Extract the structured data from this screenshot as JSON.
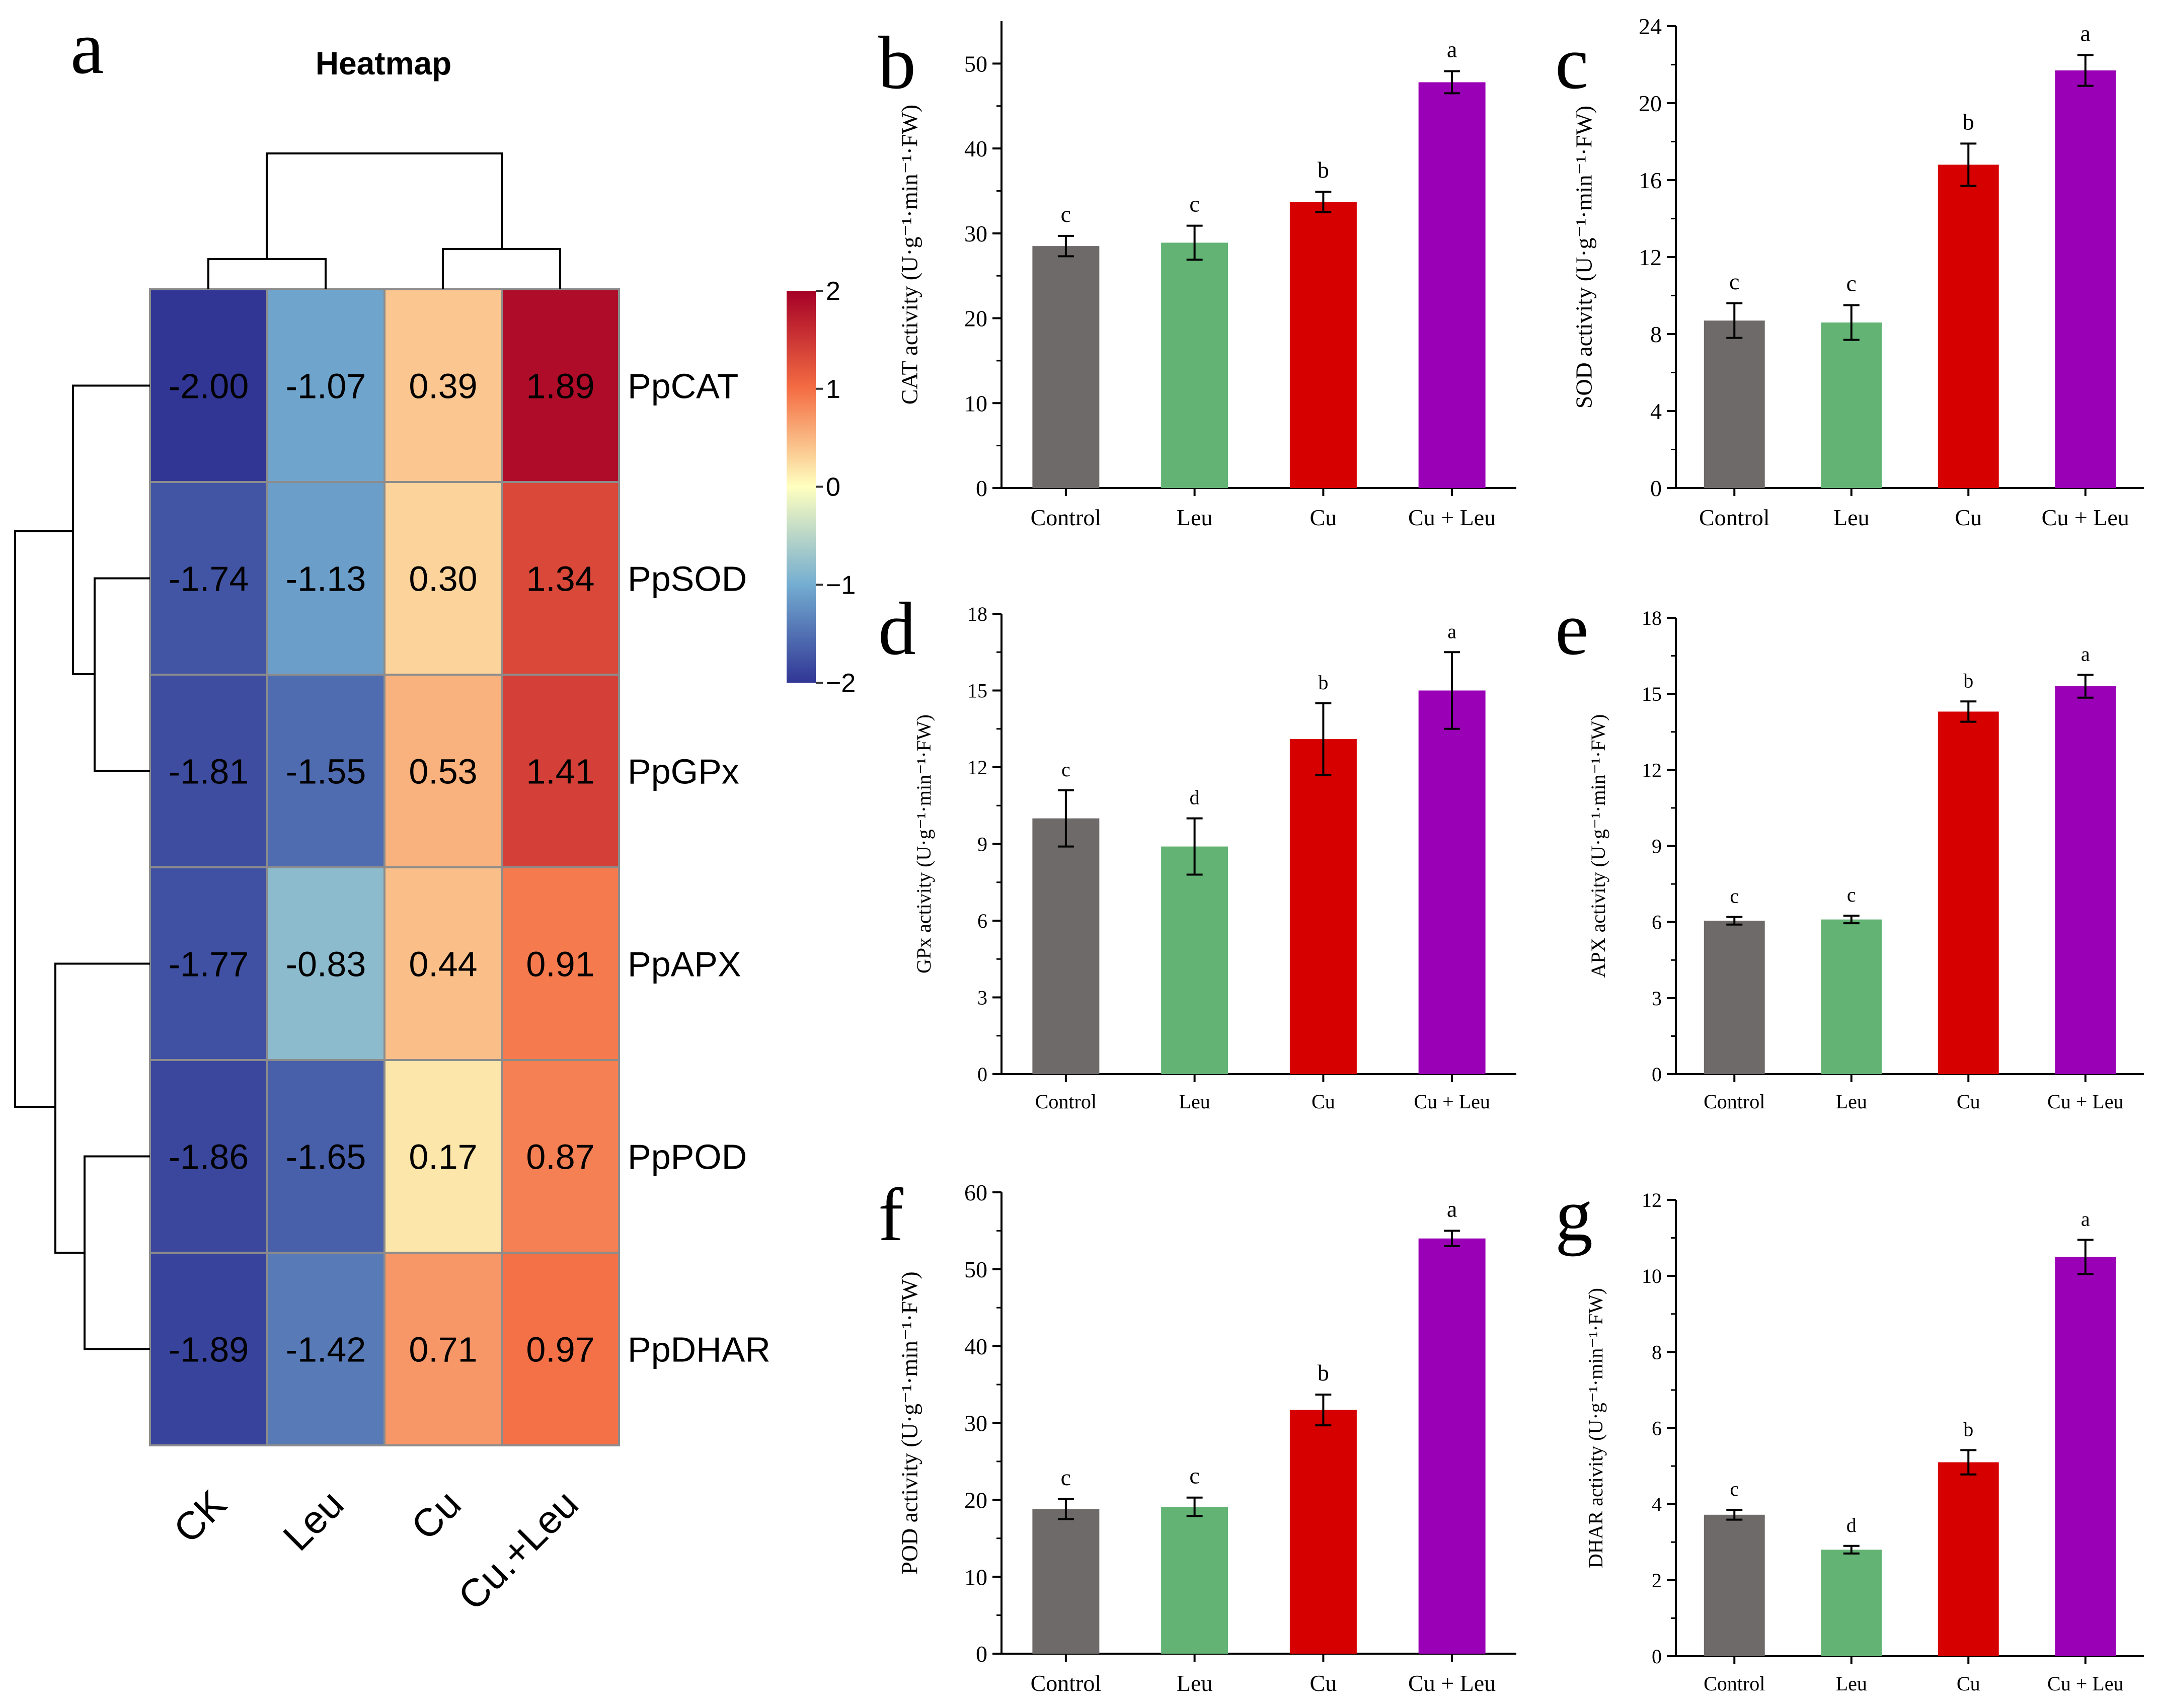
{
  "colors": {
    "Control": "#6e6a6a",
    "Leu": "#63b474",
    "Cu": "#d60000",
    "Cu + Leu": "#9a00b5",
    "grid_line": "#a8a8a8"
  },
  "chart_data": [
    {
      "panel": "a",
      "type": "heatmap",
      "title": "Heatmap",
      "columns": [
        "CK",
        "Leu",
        "Cu",
        "Cu.+Leu"
      ],
      "rows": [
        "PpCAT",
        "PpSOD",
        "PpGPx",
        "PpAPX",
        "PpPOD",
        "PpDHAR"
      ],
      "values": [
        [
          -2.0,
          -1.07,
          0.39,
          1.89
        ],
        [
          -1.74,
          -1.13,
          0.3,
          1.34
        ],
        [
          -1.81,
          -1.55,
          0.53,
          1.41
        ],
        [
          -1.77,
          -0.83,
          0.44,
          0.91
        ],
        [
          -1.86,
          -1.65,
          0.17,
          0.87
        ],
        [
          -1.89,
          -1.42,
          0.71,
          0.97
        ]
      ],
      "labels": [
        [
          "-2.00",
          "-1.07",
          "0.39",
          "1.89"
        ],
        [
          "-1.74",
          "-1.13",
          "0.30",
          "1.34"
        ],
        [
          "-1.81",
          "-1.55",
          "0.53",
          "1.41"
        ],
        [
          "-1.77",
          "-0.83",
          "0.44",
          "0.91"
        ],
        [
          "-1.86",
          "-1.65",
          "0.17",
          "0.87"
        ],
        [
          "-1.89",
          "-1.42",
          "0.71",
          "0.97"
        ]
      ],
      "colorbar": {
        "ticks": [
          "2",
          "1",
          "0",
          "−1",
          "−2"
        ],
        "vmin": -2,
        "vmax": 2
      },
      "dendrogram": {
        "columns": "((CK,Leu),(Cu,Cu.+Leu))",
        "rows": "(PpCAT,(PpSOD,PpGPx)),(PpAPX,(PpPOD,PpDHAR))"
      }
    },
    {
      "panel": "b",
      "type": "bar",
      "categories": [
        "Control",
        "Leu",
        "Cu",
        "Cu + Leu"
      ],
      "values": [
        28.5,
        28.9,
        33.7,
        47.8
      ],
      "errors": [
        1.2,
        2.0,
        1.2,
        1.3
      ],
      "letters": [
        "c",
        "c",
        "b",
        "a"
      ],
      "ylabel": "CAT activity (U·g⁻¹·min⁻¹·FW)",
      "ylim": [
        0,
        55
      ],
      "yticks": [
        0,
        10,
        20,
        30,
        40,
        50
      ]
    },
    {
      "panel": "c",
      "type": "bar",
      "categories": [
        "Control",
        "Leu",
        "Cu",
        "Cu + Leu"
      ],
      "values": [
        8.7,
        8.6,
        16.8,
        21.7
      ],
      "errors": [
        0.9,
        0.9,
        1.1,
        0.8
      ],
      "letters": [
        "c",
        "c",
        "b",
        "a"
      ],
      "ylabel": "SOD activity (U·g⁻¹·min⁻¹·FW)",
      "ylim": [
        0,
        24
      ],
      "yticks": [
        0,
        4,
        8,
        12,
        16,
        20,
        24
      ]
    },
    {
      "panel": "d",
      "type": "bar",
      "categories": [
        "Control",
        "Leu",
        "Cu",
        "Cu + Leu"
      ],
      "values": [
        10.0,
        8.9,
        13.1,
        15.0
      ],
      "errors": [
        1.1,
        1.1,
        1.4,
        1.5
      ],
      "letters": [
        "c",
        "d",
        "b",
        "a"
      ],
      "ylabel": "GPx activity (U·g⁻¹·min⁻¹·FW)",
      "ylim": [
        0,
        18
      ],
      "yticks": [
        0,
        3,
        6,
        9,
        12,
        15,
        18
      ]
    },
    {
      "panel": "e",
      "type": "bar",
      "categories": [
        "Control",
        "Leu",
        "Cu",
        "Cu + Leu"
      ],
      "values": [
        6.05,
        6.1,
        14.3,
        15.3
      ],
      "errors": [
        0.15,
        0.15,
        0.4,
        0.45
      ],
      "letters": [
        "c",
        "c",
        "b",
        "a"
      ],
      "ylabel": "APX activity (U·g⁻¹·min⁻¹·FW)",
      "ylim": [
        0,
        18
      ],
      "yticks": [
        0,
        3,
        6,
        9,
        12,
        15,
        18
      ]
    },
    {
      "panel": "f",
      "type": "bar",
      "categories": [
        "Control",
        "Leu",
        "Cu",
        "Cu + Leu"
      ],
      "values": [
        18.8,
        19.1,
        31.7,
        54.0
      ],
      "errors": [
        1.3,
        1.2,
        2.0,
        1.0
      ],
      "letters": [
        "c",
        "c",
        "b",
        "a"
      ],
      "ylabel": "POD activity (U·g⁻¹·min⁻¹·FW)",
      "ylim": [
        0,
        60
      ],
      "yticks": [
        0,
        10,
        20,
        30,
        40,
        50,
        60
      ]
    },
    {
      "panel": "g",
      "type": "bar",
      "categories": [
        "Control",
        "Leu",
        "Cu",
        "Cu + Leu"
      ],
      "values": [
        3.72,
        2.8,
        5.1,
        10.5
      ],
      "errors": [
        0.13,
        0.1,
        0.32,
        0.45
      ],
      "letters": [
        "c",
        "d",
        "b",
        "a"
      ],
      "ylabel": "DHAR activity (U·g⁻¹·min⁻¹·FW)",
      "ylim": [
        0,
        12
      ],
      "yticks": [
        0,
        2,
        4,
        6,
        8,
        10,
        12
      ]
    }
  ]
}
